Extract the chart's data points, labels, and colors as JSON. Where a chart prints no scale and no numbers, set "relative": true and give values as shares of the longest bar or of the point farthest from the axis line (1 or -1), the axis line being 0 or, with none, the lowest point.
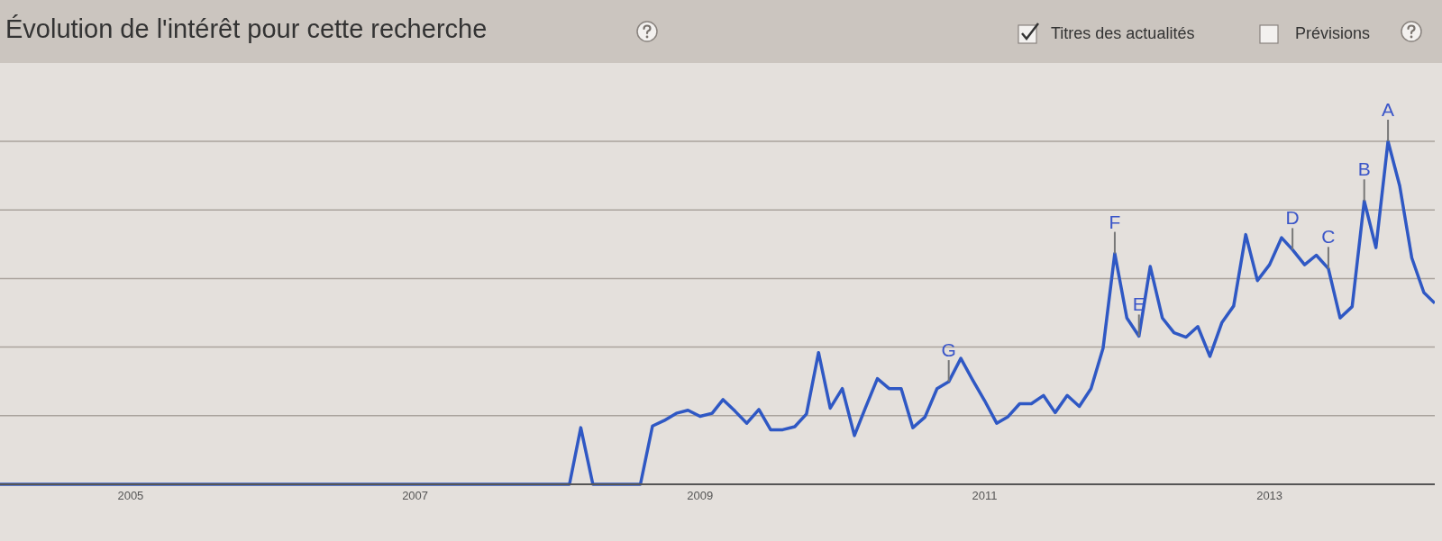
{
  "chart_data": {
    "type": "line",
    "title": "Évolution de l'intérêt pour cette recherche",
    "relative": true,
    "grid": "y",
    "x": [
      "2004-02",
      "2008-02",
      "2008-03",
      "2008-04",
      "2008-08",
      "2008-09",
      "2008-10",
      "2008-11",
      "2008-12",
      "2009-01",
      "2009-02",
      "2009-03",
      "2009-04",
      "2009-05",
      "2009-06",
      "2009-07",
      "2009-08",
      "2009-09",
      "2009-10",
      "2009-11",
      "2009-12",
      "2010-01",
      "2010-02",
      "2010-03",
      "2010-04",
      "2010-05",
      "2010-06",
      "2010-07",
      "2010-08",
      "2010-09",
      "2010-10",
      "2010-11",
      "2010-12",
      "2011-01",
      "2011-02",
      "2011-03",
      "2011-04",
      "2011-05",
      "2011-06",
      "2011-07",
      "2011-08",
      "2011-09",
      "2011-10",
      "2011-11",
      "2011-12",
      "2012-01",
      "2012-02",
      "2012-03",
      "2012-04",
      "2012-05",
      "2012-06",
      "2012-07",
      "2012-08",
      "2012-09",
      "2012-10",
      "2012-11",
      "2012-12",
      "2013-01",
      "2013-02",
      "2013-03",
      "2013-04",
      "2013-05",
      "2013-06",
      "2013-07",
      "2013-08",
      "2013-09",
      "2013-10",
      "2013-11",
      "2013-12",
      "2014-01",
      "2014-02",
      "2014-03"
    ],
    "series": [
      {
        "color": "#2f58c4",
        "values": [
          0,
          0,
          0.165,
          0,
          0,
          0.17,
          0.186,
          0.207,
          0.216,
          0.198,
          0.207,
          0.247,
          0.213,
          0.178,
          0.218,
          0.159,
          0.159,
          0.168,
          0.205,
          0.384,
          0.222,
          0.279,
          0.142,
          0.222,
          0.308,
          0.279,
          0.279,
          0.165,
          0.196,
          0.279,
          0.299,
          0.367,
          0.305,
          0.244,
          0.178,
          0.196,
          0.235,
          0.235,
          0.259,
          0.209,
          0.259,
          0.227,
          0.279,
          0.397,
          0.673,
          0.485,
          0.432,
          0.635,
          0.485,
          0.442,
          0.429,
          0.46,
          0.373,
          0.472,
          0.52,
          0.728,
          0.594,
          0.64,
          0.719,
          0.684,
          0.64,
          0.668,
          0.629,
          0.485,
          0.518,
          0.826,
          0.69,
          1,
          0.87,
          0.66,
          0.559,
          0.528
        ]
      }
    ],
    "xlim": [
      "2004-02",
      "2014-03"
    ],
    "xticks": [
      "2005",
      "2007",
      "2009",
      "2011",
      "2013"
    ],
    "annotations": [
      "Titres des actualités",
      "Prévisions",
      {
        "text": "A",
        "x": "2013-11",
        "y": 1
      },
      {
        "text": "B",
        "x": "2013-09",
        "y": 0.826
      },
      {
        "text": "C",
        "x": "2013-06",
        "y": 0.629
      },
      {
        "text": "D",
        "x": "2013-03",
        "y": 0.684
      },
      {
        "text": "E",
        "x": "2012-02",
        "y": 0.432
      },
      {
        "text": "F",
        "x": "2011-12",
        "y": 0.673
      },
      {
        "text": "G",
        "x": "2010-10",
        "y": 0.299
      }
    ]
  }
}
